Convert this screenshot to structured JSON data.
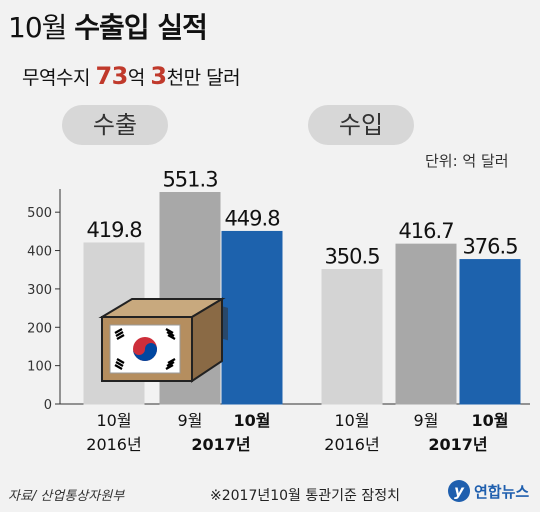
{
  "header": {
    "title_light": "10월",
    "title_bold": "수출입 실적",
    "subtitle_prefix": "무역수지 ",
    "subtitle_num1": "73",
    "subtitle_mid": "억 ",
    "subtitle_num2": "3",
    "subtitle_suffix": "천만 달러"
  },
  "groups": {
    "export_label": "수출",
    "import_label": "수입"
  },
  "unit_label": "단위: 억 달러",
  "source": "자료/ 산업통상자원부",
  "footnote": "※2017년10월 통관기준 잠정치",
  "logo_text": "연합뉴스",
  "colors": {
    "background": "#f2f2f2",
    "light_gray": "#d4d4d4",
    "mid_gray": "#a8a8a8",
    "blue": "#1d62ad",
    "accent_red": "#c0392b"
  },
  "chart_data": {
    "type": "bar",
    "title": "10월 수출입 실적",
    "subtitle": "무역수지 73억 3천만 달러",
    "unit": "단위: 억 달러",
    "ylim": [
      0,
      550
    ],
    "yticks": [
      "0",
      "100",
      "200",
      "300",
      "400",
      "500"
    ],
    "grid": false,
    "groups": [
      {
        "name": "수출",
        "bars": [
          {
            "month": "10월",
            "year": "2016년",
            "value": 419.8,
            "label": "419.8"
          },
          {
            "month": "9월",
            "year": "2017년",
            "value": 551.3,
            "label": "551.3"
          },
          {
            "month": "10월",
            "year": "2017년",
            "value": 449.8,
            "label": "449.8"
          }
        ]
      },
      {
        "name": "수입",
        "bars": [
          {
            "month": "10월",
            "year": "2016년",
            "value": 350.5,
            "label": "350.5"
          },
          {
            "month": "9월",
            "year": "2017년",
            "value": 416.7,
            "label": "416.7"
          },
          {
            "month": "10월",
            "year": "2017년",
            "value": 376.5,
            "label": "376.5"
          }
        ]
      }
    ]
  }
}
